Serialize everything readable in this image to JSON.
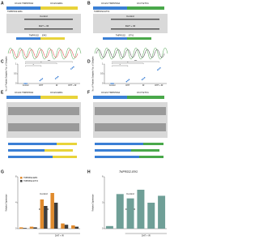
{
  "panels": [
    {
      "letter": "A",
      "left_label": "Chr21:TMPRSS2",
      "right_label": "Chr21:ERG",
      "fusion": "TMPRSS2:ERG",
      "lanes": [
        "Control",
        "DHT + IR"
      ],
      "junction": [
        "TMPRSS2",
        "ERG"
      ]
    },
    {
      "letter": "B",
      "left_label": "Chr21:TMPRSS2",
      "right_label": "Chr7:ETV1",
      "fusion": "TMPRSS2:ETV1",
      "lanes": [
        "Control",
        "DHT + IR"
      ],
      "junction": [
        "TMPRSS2",
        "ETV1"
      ]
    },
    {
      "letter": "E",
      "left_label": "Chr21:TMPRSS2",
      "right_label": "Chr21:ERG",
      "lanes": [
        "Control",
        "DHT + IR"
      ]
    },
    {
      "letter": "F",
      "left_label": "Chr21:TMPRSS2",
      "right_label": "Chr7:ETV1",
      "lanes": [
        "Control",
        "DHT + IR"
      ]
    }
  ],
  "charts": [
    {
      "letter": "C",
      "type": "scatter",
      "ylabel": "No. of Positive Samples/ No. of Samples",
      "categories": [
        "Control",
        "DHT",
        "IR",
        "DHT + IR"
      ],
      "values": [
        [
          0,
          0,
          0
        ],
        [
          0.15,
          0.2,
          0.25
        ],
        [
          0.25,
          0.3,
          0.35
        ],
        [
          0.75,
          0.8,
          0.85
        ]
      ],
      "color": "#3a7fd5",
      "ylim": [
        0,
        1
      ],
      "yticks": [
        0,
        0.5,
        1
      ],
      "annotations": [
        "*",
        "*",
        "***"
      ]
    },
    {
      "letter": "D",
      "type": "scatter",
      "ylabel": "No. of Positive Samples/ No. of Samples",
      "categories": [
        "Control",
        "DHT",
        "IR",
        "DHT + IR"
      ],
      "values": [
        [
          0,
          0,
          0
        ],
        [
          0.1,
          0.15,
          0.2
        ],
        [
          0.2,
          0.25,
          0.3
        ],
        [
          0.7,
          0.75,
          0.8
        ]
      ],
      "color": "#3a7fd5",
      "ylim": [
        0,
        1
      ],
      "yticks": [
        0,
        0.5,
        1
      ],
      "annotations": [
        "*",
        "*",
        "***"
      ]
    },
    {
      "letter": "G",
      "type": "bar",
      "ylabel": "Relative Expression",
      "categories": [
        null,
        null,
        null,
        null,
        null,
        null
      ],
      "series": [
        {
          "name": "TMPRSS2-ERG",
          "color": "#e08a2c",
          "values": [
            0.2,
            0.3,
            4.5,
            5.5,
            0.8,
            0.5
          ]
        },
        {
          "name": "TMPRSS2-ETV1",
          "color": "#3d3d3d",
          "values": [
            0.1,
            0.2,
            3.5,
            4,
            0.6,
            0.3
          ]
        }
      ],
      "ylim": [
        0,
        8
      ],
      "yticks": [
        0,
        4,
        8
      ],
      "group_label": "DHT + IR"
    },
    {
      "letter": "H",
      "type": "bar",
      "title": "TMPRSS2-ERG",
      "ylabel": "Relative Expression",
      "categories": [
        null,
        null,
        null,
        null,
        null,
        null
      ],
      "series": [
        {
          "name": null,
          "color": "#6f9f97",
          "values": [
            0.3,
            4,
            3.5,
            4.5,
            3,
            3.8
          ]
        }
      ],
      "ylim": [
        0,
        6
      ],
      "yticks": [
        0,
        3,
        6
      ],
      "group_label": "DHT + IR"
    }
  ]
}
